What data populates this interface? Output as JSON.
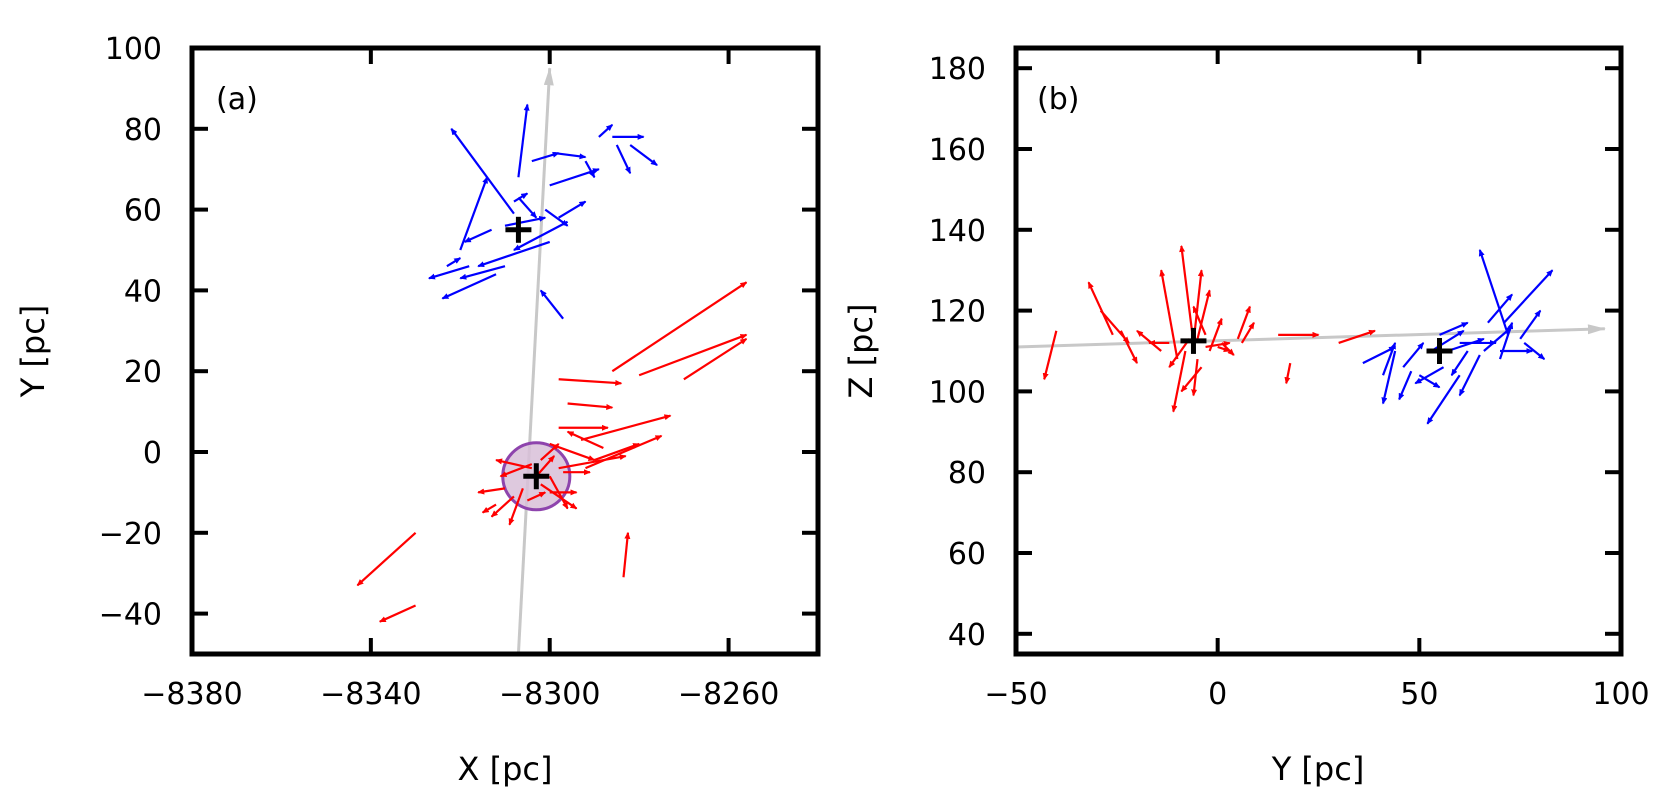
{
  "colors": {
    "group_a": "#ff0000",
    "group_b": "#0000ff",
    "path": "#c8c8c8",
    "circle_fill": "#d8bfd8",
    "circle_edge": "#8e44ad",
    "marker": "#000000"
  },
  "chart_data": [
    {
      "type": "quiver",
      "panel_label": "(a)",
      "xlabel": "X [pc]",
      "ylabel": "Y [pc]",
      "xlim": [
        -8380,
        -8240
      ],
      "ylim": [
        -50,
        100
      ],
      "xticks": [
        -8380,
        -8340,
        -8300,
        -8260
      ],
      "xtick_labels": [
        "−8380",
        "−8340",
        "−8300",
        "−8260"
      ],
      "yticks": [
        -40,
        -20,
        0,
        20,
        40,
        60,
        80,
        100
      ],
      "ytick_labels": [
        "−40",
        "−20",
        "0",
        "20",
        "40",
        "60",
        "80",
        "100"
      ],
      "path_line": {
        "x0": -8307.0,
        "y0": -50,
        "x1": -8300.0,
        "y1": 95
      },
      "circle": {
        "x": -8303.0,
        "y": -6.0,
        "r": 7.5
      },
      "markers": [
        {
          "x": -8303.0,
          "y": -6.0
        },
        {
          "x": -8307.0,
          "y": 55.0
        }
      ],
      "series": [
        {
          "name": "red group",
          "color_key": "group_a",
          "arrows": [
            [
              -8330.0,
              -20.0,
              -8343.0,
              -33.0
            ],
            [
              -8330.0,
              -38.0,
              -8338.0,
              -42.0
            ],
            [
              -8283.5,
              -31.0,
              -8282.5,
              -20.0
            ],
            [
              -8286.0,
              20.0,
              -8256.0,
              42.0
            ],
            [
              -8280.0,
              19.0,
              -8256.0,
              29.0
            ],
            [
              -8270.0,
              18.0,
              -8256.0,
              28.0
            ],
            [
              -8298.0,
              18.0,
              -8284.0,
              17.0
            ],
            [
              -8296.0,
              12.0,
              -8286.0,
              11.0
            ],
            [
              -8298.0,
              6.0,
              -8287.0,
              6.0
            ],
            [
              -8300.0,
              2.0,
              -8290.0,
              -2.0
            ],
            [
              -8293.0,
              3.0,
              -8273.0,
              9.0
            ],
            [
              -8292.0,
              -4.0,
              -8275.0,
              4.0
            ],
            [
              -8298.0,
              -4.0,
              -8283.0,
              -1.0
            ],
            [
              -8290.0,
              -2.0,
              -8280.0,
              2.0
            ],
            [
              -8288.0,
              1.0,
              -8296.0,
              5.0
            ],
            [
              -8300.0,
              -6.0,
              -8296.0,
              -14.0
            ],
            [
              -8304.0,
              -3.0,
              -8311.0,
              -6.0
            ],
            [
              -8303.0,
              -6.0,
              -8299.0,
              -1.0
            ],
            [
              -8304.0,
              -4.0,
              -8312.0,
              -2.0
            ],
            [
              -8306.0,
              -9.0,
              -8309.0,
              -18.0
            ],
            [
              -8310.0,
              -9.0,
              -8316.0,
              -10.0
            ],
            [
              -8305.0,
              -12.0,
              -8301.0,
              -10.0
            ],
            [
              -8302.0,
              -8.0,
              -8294.0,
              -14.0
            ],
            [
              -8308.0,
              -11.0,
              -8313.0,
              -16.0
            ],
            [
              -8312.0,
              -13.0,
              -8315.0,
              -15.0
            ],
            [
              -8302.0,
              -2.0,
              -8298.0,
              2.0
            ],
            [
              -8300.0,
              -10.0,
              -8294.0,
              -10.0
            ],
            [
              -8297.0,
              -5.0,
              -8291.0,
              -5.0
            ]
          ]
        },
        {
          "name": "blue group",
          "color_key": "group_b",
          "arrows": [
            [
              -8307.0,
              68.0,
              -8305.0,
              86.0
            ],
            [
              -8308.0,
              59.0,
              -8322.0,
              80.0
            ],
            [
              -8313.0,
              55.0,
              -8319.0,
              52.0
            ],
            [
              -8320.0,
              50.0,
              -8314.0,
              68.0
            ],
            [
              -8310.0,
              46.0,
              -8320.0,
              43.0
            ],
            [
              -8318.0,
              46.0,
              -8327.0,
              43.0
            ],
            [
              -8323.0,
              46.0,
              -8320.0,
              48.0
            ],
            [
              -8312.0,
              44.0,
              -8324.0,
              38.0
            ],
            [
              -8300.0,
              52.0,
              -8316.0,
              46.0
            ],
            [
              -8296.0,
              57.0,
              -8308.0,
              50.0
            ],
            [
              -8297.0,
              33.0,
              -8302.0,
              40.0
            ],
            [
              -8301.0,
              60.0,
              -8296.0,
              56.0
            ],
            [
              -8307.0,
              63.0,
              -8303.0,
              58.0
            ],
            [
              -8300.0,
              66.0,
              -8289.0,
              70.0
            ],
            [
              -8304.0,
              72.0,
              -8298.0,
              74.0
            ],
            [
              -8299.0,
              74.0,
              -8292.0,
              73.0
            ],
            [
              -8292.0,
              72.0,
              -8290.0,
              68.0
            ],
            [
              -8289.0,
              78.0,
              -8286.0,
              81.0
            ],
            [
              -8286.0,
              78.0,
              -8279.0,
              78.0
            ],
            [
              -8285.0,
              76.0,
              -8282.0,
              69.0
            ],
            [
              -8282.0,
              76.0,
              -8276.0,
              71.0
            ],
            [
              -8298.0,
              58.0,
              -8292.0,
              62.0
            ],
            [
              -8310.0,
              56.0,
              -8301.0,
              58.0
            ],
            [
              -8308.0,
              62.0,
              -8305.0,
              64.0
            ]
          ]
        }
      ]
    },
    {
      "type": "quiver",
      "panel_label": "(b)",
      "xlabel": "Y [pc]",
      "ylabel": "Z [pc]",
      "xlim": [
        -50,
        100
      ],
      "ylim": [
        35,
        185
      ],
      "xticks": [
        -50,
        0,
        50,
        100
      ],
      "xtick_labels": [
        "−50",
        "0",
        "50",
        "100"
      ],
      "yticks": [
        40,
        60,
        80,
        100,
        120,
        140,
        160,
        180
      ],
      "ytick_labels": [
        "40",
        "60",
        "80",
        "100",
        "120",
        "140",
        "160",
        "180"
      ],
      "path_line": {
        "x0": -50,
        "y0": 111.0,
        "x1": 96.0,
        "y1": 115.5
      },
      "markers": [
        {
          "x": -6.0,
          "y": 112.5
        },
        {
          "x": 55.0,
          "y": 110.0
        }
      ],
      "series": [
        {
          "name": "red group",
          "color_key": "group_a",
          "arrows": [
            [
              -40.0,
              115.0,
              -43.0,
              103.0
            ],
            [
              -26.0,
              114.0,
              -32.0,
              127.0
            ],
            [
              -29.0,
              120.0,
              -22.0,
              112.0
            ],
            [
              -24.0,
              115.0,
              -20.0,
              107.0
            ],
            [
              -14.0,
              110.0,
              -20.0,
              115.0
            ],
            [
              -10.0,
              108.0,
              -14.0,
              130.0
            ],
            [
              -6.0,
              112.0,
              -9.0,
              136.0
            ],
            [
              -8.0,
              110.0,
              -11.0,
              95.0
            ],
            [
              -5.0,
              108.0,
              -6.0,
              99.0
            ],
            [
              -6.0,
              112.0,
              -4.0,
              130.0
            ],
            [
              -3.0,
              114.0,
              -6.0,
              121.0
            ],
            [
              -2.0,
              110.0,
              1.0,
              118.0
            ],
            [
              -4.0,
              106.0,
              -9.0,
              100.0
            ],
            [
              -7.0,
              113.0,
              -12.0,
              106.0
            ],
            [
              -5.0,
              113.0,
              -2.0,
              125.0
            ],
            [
              1.0,
              112.0,
              4.0,
              109.0
            ],
            [
              -3.0,
              111.0,
              3.0,
              112.0
            ],
            [
              5.0,
              113.0,
              8.0,
              121.0
            ],
            [
              6.0,
              112.0,
              9.0,
              117.0
            ],
            [
              15.0,
              114.0,
              25.0,
              114.0
            ],
            [
              18.0,
              107.0,
              17.0,
              102.0
            ],
            [
              30.0,
              112.0,
              39.0,
              115.0
            ],
            [
              -12.0,
              112.0,
              -17.0,
              112.0
            ],
            [
              0.0,
              111.0,
              3.0,
              110.0
            ]
          ]
        },
        {
          "name": "blue group",
          "color_key": "group_b",
          "arrows": [
            [
              36.0,
              107.0,
              44.0,
              111.0
            ],
            [
              41.0,
              104.0,
              44.0,
              112.0
            ],
            [
              44.0,
              110.0,
              41.0,
              97.0
            ],
            [
              46.0,
              106.0,
              51.0,
              112.0
            ],
            [
              48.0,
              105.0,
              45.0,
              98.0
            ],
            [
              50.0,
              104.0,
              55.0,
              101.0
            ],
            [
              53.0,
              110.0,
              61.0,
              115.0
            ],
            [
              56.0,
              106.0,
              49.0,
              102.0
            ],
            [
              57.0,
              110.0,
              66.0,
              113.0
            ],
            [
              60.0,
              104.0,
              52.0,
              92.0
            ],
            [
              62.0,
              110.0,
              58.0,
              104.0
            ],
            [
              65.0,
              109.0,
              60.0,
              99.0
            ],
            [
              66.0,
              110.0,
              73.0,
              116.0
            ],
            [
              70.0,
              108.0,
              73.0,
              117.0
            ],
            [
              70.0,
              110.0,
              78.0,
              110.0
            ],
            [
              72.0,
              114.0,
              65.0,
              135.0
            ],
            [
              71.0,
              117.0,
              83.0,
              130.0
            ],
            [
              75.0,
              113.0,
              80.0,
              120.0
            ],
            [
              76.0,
              112.0,
              81.0,
              108.0
            ],
            [
              67.0,
              117.0,
              73.0,
              124.0
            ],
            [
              60.0,
              112.0,
              69.0,
              112.0
            ],
            [
              55.0,
              114.0,
              62.0,
              117.0
            ]
          ]
        }
      ]
    }
  ]
}
